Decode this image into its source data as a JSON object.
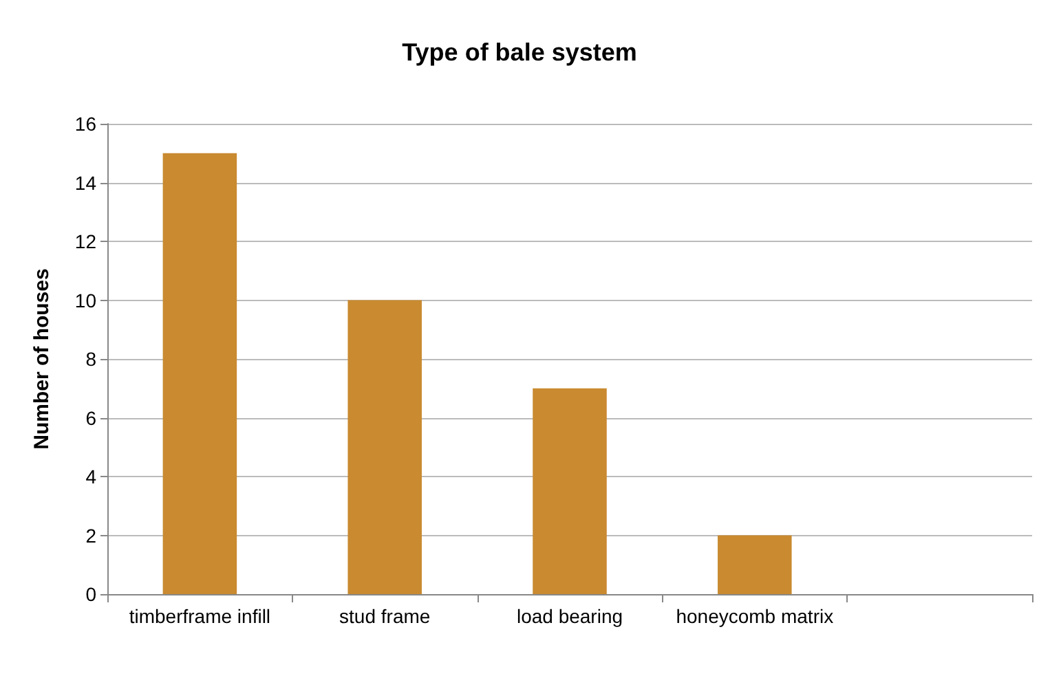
{
  "chart_data": {
    "type": "bar",
    "title": "Type of bale system",
    "ylabel": "Number of houses",
    "categories": [
      "timberframe infill",
      "stud frame",
      "load bearing",
      "honeycomb matrix",
      null
    ],
    "values": [
      15,
      10,
      7,
      2,
      null
    ],
    "color": "#c98a30",
    "ylim": [
      0,
      16
    ],
    "yticks": [
      0,
      2,
      4,
      6,
      8,
      10,
      12,
      14,
      16
    ],
    "grid": "y"
  }
}
